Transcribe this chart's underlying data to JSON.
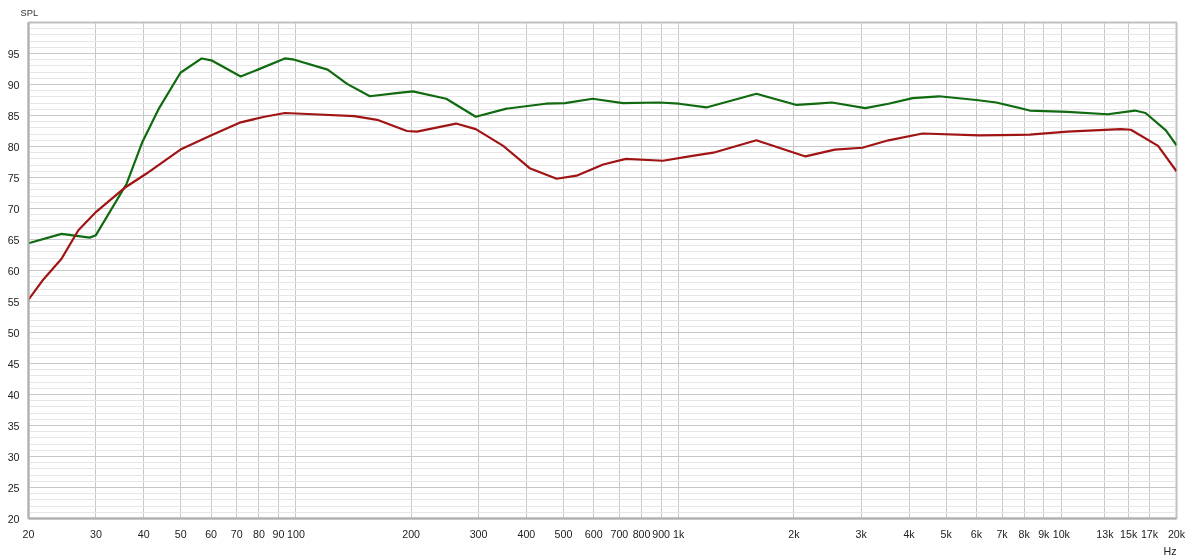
{
  "chart_data": {
    "type": "line",
    "ylabel": "SPL",
    "log": "x",
    "grid": true,
    "marker": "none",
    "line_style": "solid",
    "xlim": [
      20,
      20000
    ],
    "ylim": [
      20,
      100
    ],
    "xticks": [
      20,
      30,
      40,
      50,
      60,
      70,
      80,
      90,
      100,
      200,
      300,
      400,
      500,
      600,
      700,
      800,
      900,
      {
        "value": 1000,
        "label": "1k"
      },
      {
        "value": 2000,
        "label": "2k"
      },
      {
        "value": 3000,
        "label": "3k"
      },
      {
        "value": 4000,
        "label": "4k"
      },
      {
        "value": 5000,
        "label": "5k"
      },
      {
        "value": 6000,
        "label": "6k"
      },
      {
        "value": 7000,
        "label": "7k"
      },
      {
        "value": 8000,
        "label": "8k"
      },
      {
        "value": 9000,
        "label": "9k"
      },
      {
        "value": 10000,
        "label": "10k"
      },
      {
        "value": 13000,
        "label": "13k"
      },
      {
        "value": 15000,
        "label": "15k"
      },
      {
        "value": 17000,
        "label": "17k"
      },
      {
        "value": 20000,
        "label": "20k"
      }
    ],
    "xlabel": "Hz",
    "yticks": [
      20,
      25,
      30,
      35,
      40,
      45,
      50,
      55,
      60,
      65,
      70,
      75,
      80,
      85,
      90,
      95
    ],
    "series": [
      {
        "color": "#106a10",
        "x": [
          20,
          24.4,
          28.9,
          30,
          36.1,
          39.6,
          43.9,
          49.9,
          56.7,
          60.1,
          71.7,
          79.5,
          93.5,
          99,
          121,
          136,
          156,
          183,
          202,
          247,
          295,
          355,
          449,
          505,
          596,
          715,
          889,
          1003,
          1181,
          1597,
          2033,
          2296,
          2514,
          3074,
          3534,
          4089,
          4788,
          5998,
          6760,
          8269,
          10370,
          13220,
          15570,
          16600,
          18760,
          20000
        ],
        "values": [
          64.4,
          65.9,
          65.3,
          65.7,
          74.0,
          80.6,
          86.2,
          91.9,
          94.2,
          93.9,
          91.3,
          92.4,
          94.2,
          94.0,
          92.4,
          90.1,
          88.1,
          88.6,
          88.9,
          87.7,
          84.8,
          86.1,
          86.9,
          87.0,
          87.7,
          87.0,
          87.1,
          86.9,
          86.3,
          88.5,
          86.7,
          86.9,
          87.1,
          86.2,
          86.9,
          87.8,
          88.1,
          87.5,
          87.1,
          85.8,
          85.6,
          85.2,
          85.8,
          85.4,
          82.6,
          80.2
        ]
      },
      {
        "color": "#a01414",
        "x": [
          20,
          21.9,
          24.4,
          27.0,
          30.1,
          35.6,
          40.6,
          49.9,
          60.1,
          71.7,
          82.8,
          93.5,
          111,
          142,
          163,
          195,
          207,
          262,
          295,
          348,
          408,
          480,
          541,
          635,
          728,
          910,
          1066,
          1232,
          1597,
          2145,
          2560,
          3020,
          3534,
          4340,
          6104,
          8269,
          10370,
          14300,
          15200,
          17900,
          20000
        ],
        "values": [
          55.3,
          58.6,
          61.9,
          66.5,
          69.5,
          73.3,
          75.6,
          79.5,
          81.8,
          83.9,
          84.8,
          85.4,
          85.2,
          84.9,
          84.3,
          82.5,
          82.4,
          83.7,
          82.8,
          80.1,
          76.5,
          74.8,
          75.3,
          77.1,
          78.0,
          77.7,
          78.4,
          79.0,
          81.0,
          78.4,
          79.5,
          79.8,
          81.0,
          82.1,
          81.8,
          81.9,
          82.4,
          82.8,
          82.7,
          80.1,
          76.0
        ]
      }
    ]
  }
}
